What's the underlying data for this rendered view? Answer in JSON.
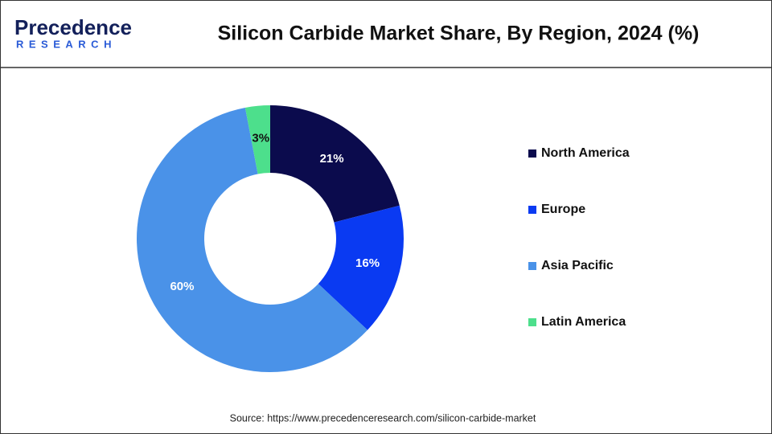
{
  "chart_data": {
    "type": "donut",
    "title": "Silicon Carbide Market Share, By Region, 2024 (%)",
    "logo": {
      "name": "Precedence",
      "tagline": "RESEARCH"
    },
    "categories": [
      "North America",
      "Europe",
      "Asia Pacific",
      "Latin America"
    ],
    "values": [
      21,
      16,
      60,
      3
    ],
    "value_labels": [
      "21%",
      "16%",
      "60%",
      "3%"
    ],
    "colors": [
      "#0b0b4d",
      "#0a3af2",
      "#4a92e8",
      "#4ddf8c"
    ],
    "legend": "right",
    "source": "Source: https://www.precedenceresearch.com/silicon-carbide-market"
  }
}
